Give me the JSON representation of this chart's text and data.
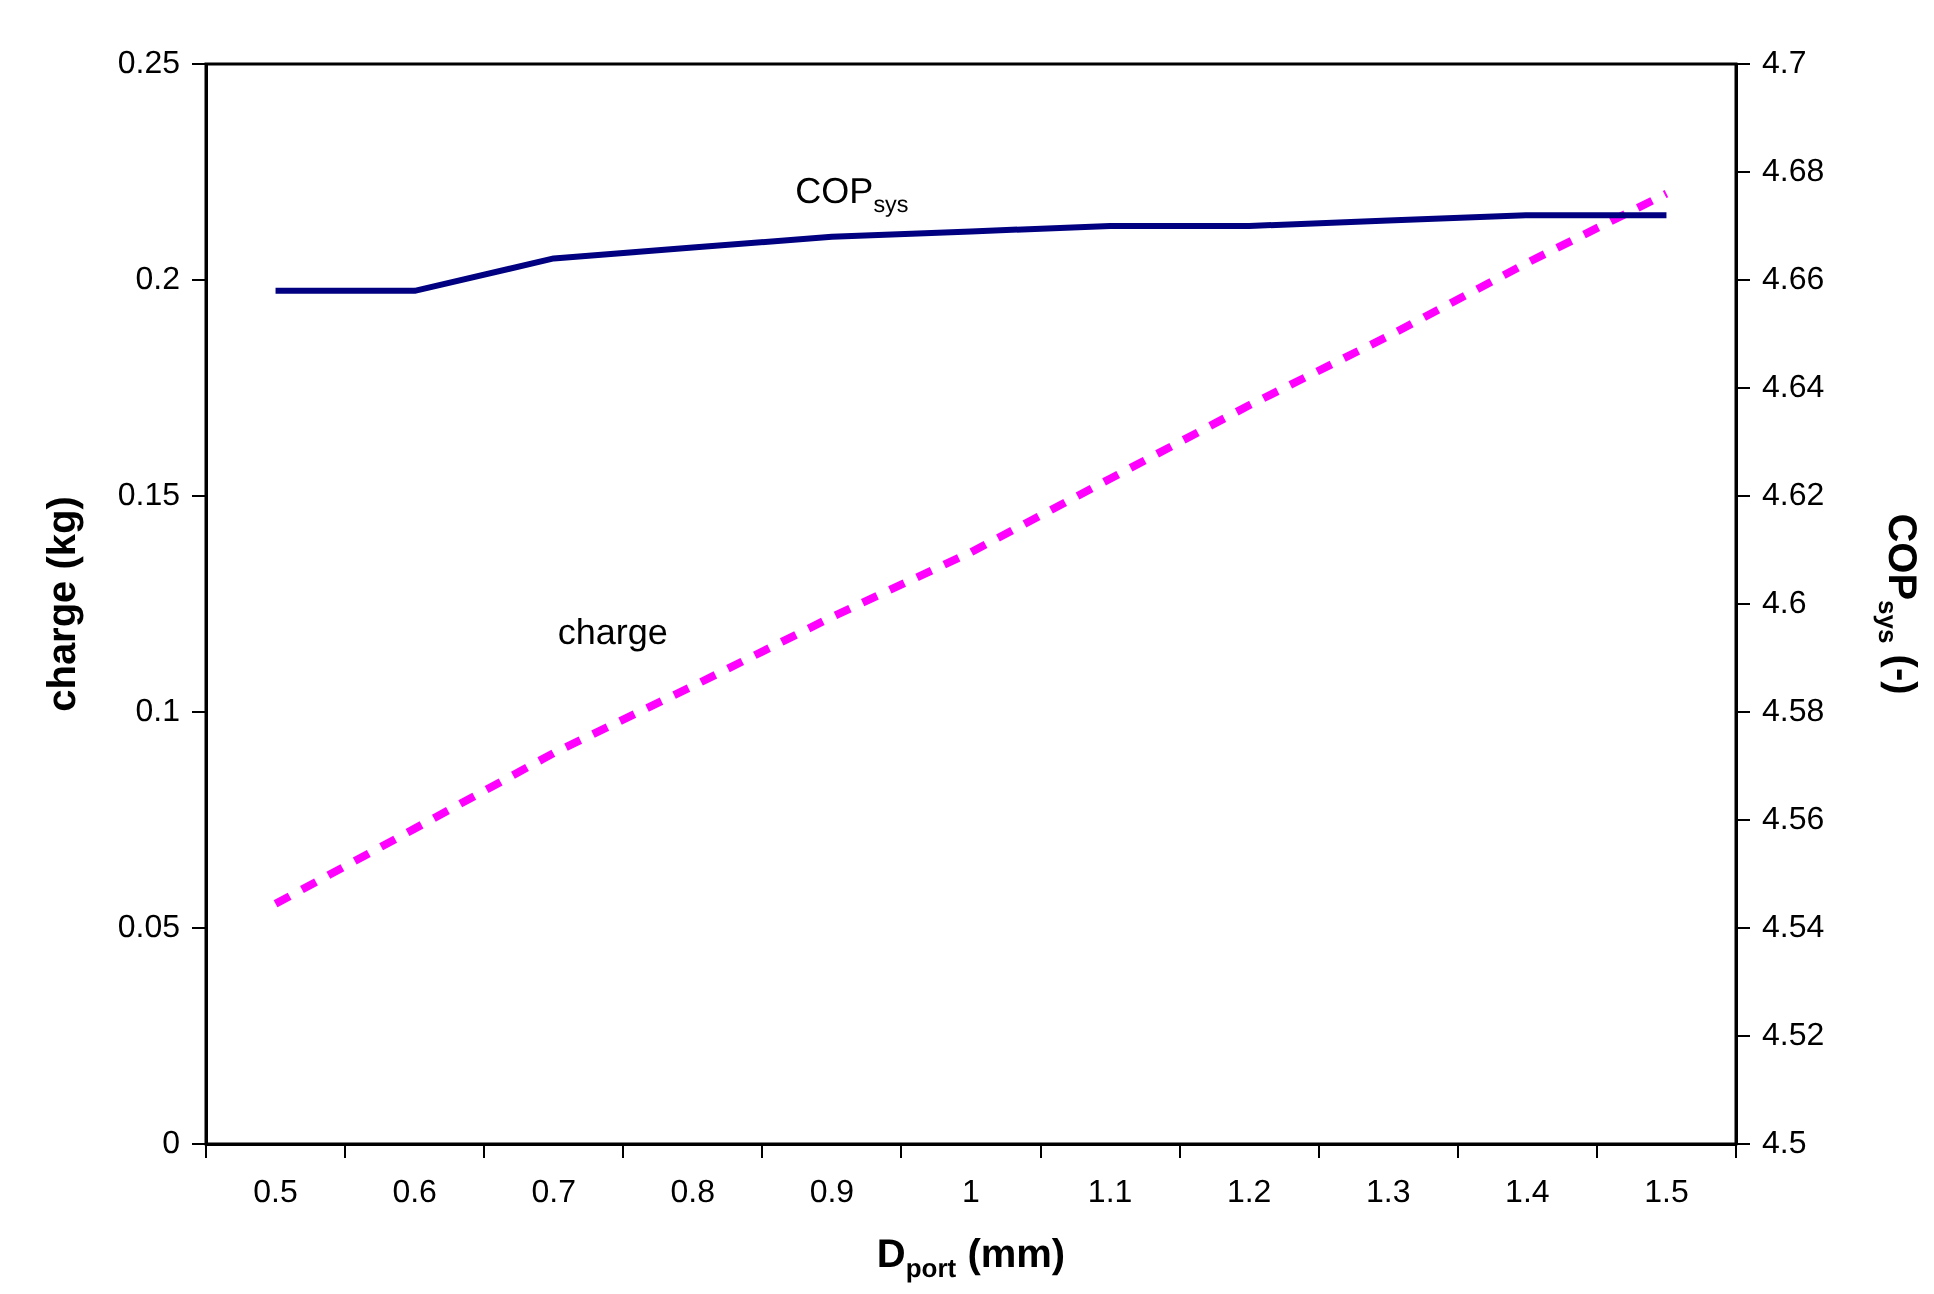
{
  "chart_data": {
    "type": "line",
    "xlabel": "D$_{port}$ (mm)",
    "ylabel": "charge (kg)",
    "y2label": "COP$_{sys}$ (-)",
    "categories": [
      "0.5",
      "0.6",
      "0.7",
      "0.8",
      "0.9",
      "1",
      "1.1",
      "1.2",
      "1.3",
      "1.4",
      "1.5"
    ],
    "ylim": [
      0,
      0.25
    ],
    "yticks": [
      0,
      0.05,
      0.1,
      0.15,
      0.2,
      0.25
    ],
    "y2lim": [
      4.5,
      4.7
    ],
    "y2ticks": [
      4.5,
      4.52,
      4.54,
      4.56,
      4.58,
      4.6,
      4.62,
      4.64,
      4.66,
      4.68,
      4.7
    ],
    "grid": false,
    "legend": false,
    "marker": "none",
    "series": [
      {
        "name": "COP$_{sys}$",
        "color": "#000080",
        "axis": "y2",
        "line_style": "solid",
        "values": [
          4.658,
          4.658,
          4.664,
          4.666,
          4.668,
          4.669,
          4.67,
          4.67,
          4.671,
          4.672,
          4.672
        ]
      },
      {
        "name": "charge",
        "color": "#ff00ff",
        "axis": "y",
        "line_style": "dashed",
        "values": [
          0.0556,
          0.073,
          0.0905,
          0.106,
          0.122,
          0.137,
          0.154,
          0.171,
          0.187,
          0.204,
          0.22
        ]
      }
    ]
  }
}
